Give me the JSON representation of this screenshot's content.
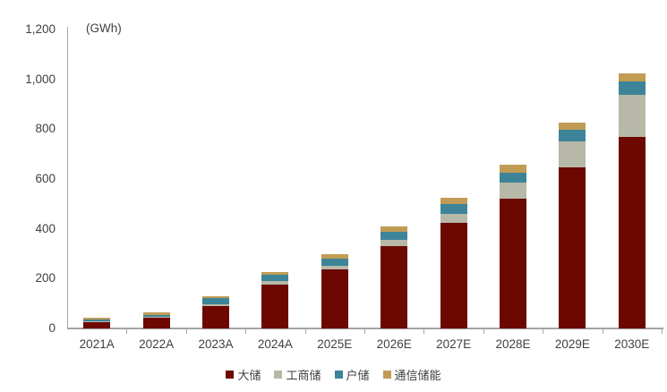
{
  "chart_data": {
    "type": "bar",
    "stacked": true,
    "unit_label": "(GWh)",
    "categories": [
      "2021A",
      "2022A",
      "2023A",
      "2024A",
      "2025E",
      "2026E",
      "2027E",
      "2028E",
      "2029E",
      "2030E"
    ],
    "series": [
      {
        "name": "大储",
        "color": "#6C0800",
        "values": [
          24,
          42,
          90,
          177,
          238,
          330,
          424,
          520,
          648,
          768
        ]
      },
      {
        "name": "工商储",
        "color": "#B7B8A7",
        "values": [
          4,
          5,
          7,
          13,
          14,
          27,
          36,
          66,
          104,
          170
        ]
      },
      {
        "name": "户储",
        "color": "#3D8499",
        "values": [
          8,
          8,
          24,
          24,
          28,
          32,
          38,
          40,
          46,
          55
        ]
      },
      {
        "name": "通信储能",
        "color": "#C19C55",
        "values": [
          8,
          10,
          10,
          11,
          18,
          21,
          28,
          31,
          29,
          30
        ]
      }
    ],
    "ylim": [
      0,
      1200
    ],
    "ytick_step": 200,
    "ytick_labels": [
      "0",
      "200",
      "400",
      "600",
      "800",
      "1,000",
      "1,200"
    ],
    "grid": false,
    "legend_position": "bottom"
  },
  "colors": {
    "background": "#FFFFFF",
    "axis_line": "#A6A6A6",
    "tick_text": "#404040"
  }
}
